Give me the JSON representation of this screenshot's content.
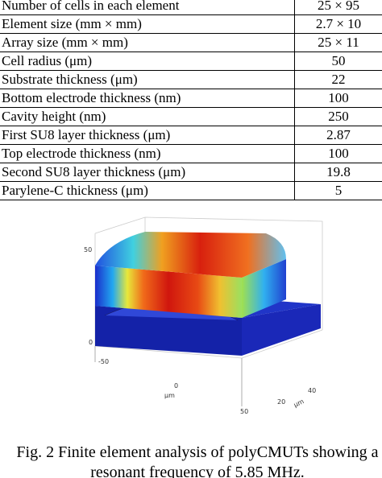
{
  "table": {
    "rows": [
      [
        "Number of cells in each element",
        "25 × 95"
      ],
      [
        "Element size (mm × mm)",
        "2.7 × 10"
      ],
      [
        "Array size (mm × mm)",
        "25 × 11"
      ],
      [
        "Cell radius (μm)",
        "50"
      ],
      [
        "Substrate thickness (μm)",
        "22"
      ],
      [
        "Bottom electrode thickness (nm)",
        "100"
      ],
      [
        "Cavity height (nm)",
        "250"
      ],
      [
        "First SU8 layer thickness (μm)",
        "2.87"
      ],
      [
        "Top electrode thickness (nm)",
        "100"
      ],
      [
        "Second SU8 layer thickness (μm)",
        "19.8"
      ],
      [
        "Parylene-C thickness (μm)",
        "5"
      ]
    ]
  },
  "figure": {
    "axis_labels": [
      "50",
      "0",
      "-50",
      "0",
      "μm",
      "50",
      "40",
      "20",
      "μm"
    ]
  },
  "caption": {
    "lines": [
      "Fig. 2 Finite element analysis of polyCMUTs showing a",
      "resonant frequency of 5.85 MHz."
    ]
  }
}
